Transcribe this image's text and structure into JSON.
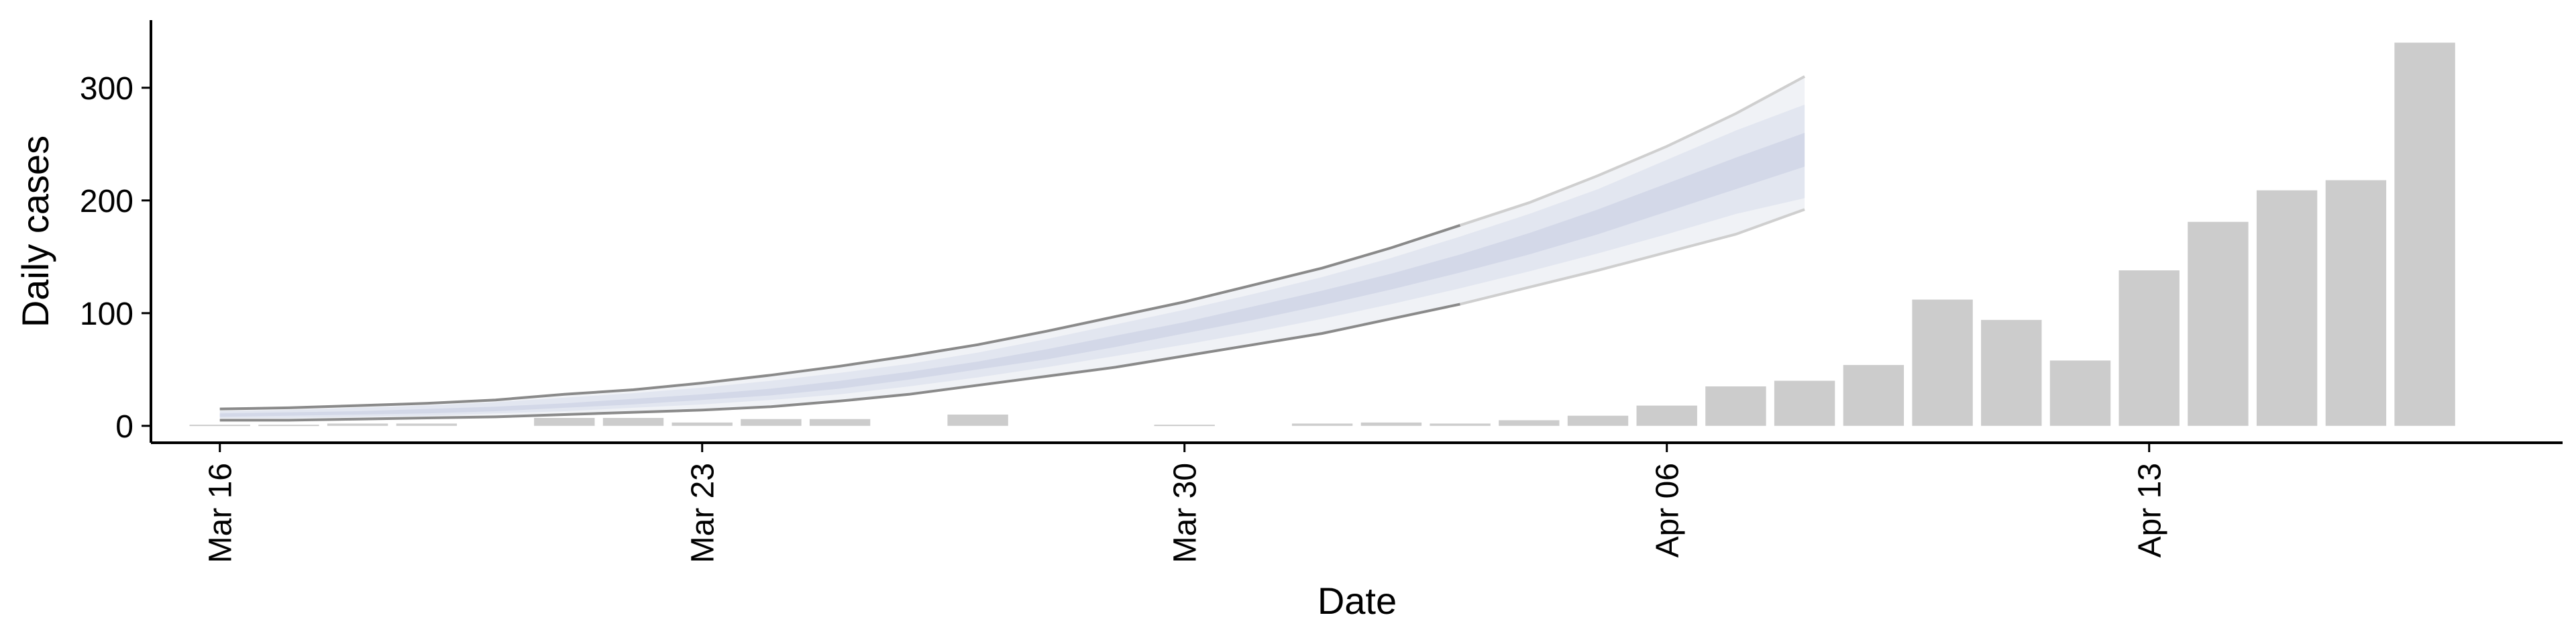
{
  "chart_data": {
    "type": "bar",
    "title": "",
    "xlabel": "Date",
    "ylabel": "Daily cases",
    "ylim": [
      -15,
      360
    ],
    "yticks": [
      0,
      100,
      200,
      300
    ],
    "xlim": [
      "2020-03-15",
      "2020-04-19"
    ],
    "xticks": [
      {
        "date": "2020-03-16",
        "label": "Mar 16"
      },
      {
        "date": "2020-03-23",
        "label": "Mar 23"
      },
      {
        "date": "2020-03-30",
        "label": "Mar 30"
      },
      {
        "date": "2020-04-06",
        "label": "Apr 06"
      },
      {
        "date": "2020-04-13",
        "label": "Apr 13"
      }
    ],
    "grid": false,
    "legend": "none",
    "colors": {
      "bars": "#cccccc",
      "band_outer": "#edf0f5",
      "band_mid": "#dde2ed",
      "band_inner": "#cdd3e6",
      "bound_dark": "#8a8a8a",
      "bound_light": "#cfcfcf"
    },
    "bars": {
      "dates": [
        "2020-03-16",
        "2020-03-17",
        "2020-03-18",
        "2020-03-19",
        "2020-03-20",
        "2020-03-21",
        "2020-03-22",
        "2020-03-23",
        "2020-03-24",
        "2020-03-25",
        "2020-03-26",
        "2020-03-27",
        "2020-03-28",
        "2020-03-29",
        "2020-03-30",
        "2020-03-31",
        "2020-04-01",
        "2020-04-02",
        "2020-04-03",
        "2020-04-04",
        "2020-04-05",
        "2020-04-06",
        "2020-04-07",
        "2020-04-08",
        "2020-04-09",
        "2020-04-10",
        "2020-04-11",
        "2020-04-12",
        "2020-04-13",
        "2020-04-14",
        "2020-04-15",
        "2020-04-16",
        "2020-04-17",
        "2020-04-18"
      ],
      "values": [
        1,
        1,
        2,
        2,
        0,
        7,
        7,
        3,
        6,
        6,
        0,
        10,
        0,
        0,
        1,
        0,
        2,
        3,
        2,
        5,
        9,
        18,
        35,
        40,
        54,
        112,
        94,
        58,
        138,
        181,
        209,
        218,
        340,
        0
      ]
    },
    "nowcast": {
      "dates": [
        "2020-03-16",
        "2020-03-17",
        "2020-03-18",
        "2020-03-19",
        "2020-03-20",
        "2020-03-21",
        "2020-03-22",
        "2020-03-23",
        "2020-03-24",
        "2020-03-25",
        "2020-03-26",
        "2020-03-27",
        "2020-03-28",
        "2020-03-29",
        "2020-03-30",
        "2020-03-31",
        "2020-04-01",
        "2020-04-02",
        "2020-04-03",
        "2020-04-04",
        "2020-04-05",
        "2020-04-06",
        "2020-04-07",
        "2020-04-08"
      ],
      "outer_lower": [
        5,
        5,
        6,
        7,
        8,
        10,
        12,
        14,
        17,
        22,
        28,
        36,
        44,
        52,
        62,
        72,
        82,
        95,
        108,
        123,
        138,
        154,
        170,
        192
      ],
      "mid_lower": [
        7,
        7,
        8,
        9,
        11,
        13,
        16,
        19,
        23,
        28,
        35,
        43,
        52,
        62,
        72,
        83,
        95,
        108,
        122,
        137,
        153,
        170,
        188,
        202
      ],
      "inner_lower": [
        8,
        9,
        10,
        11,
        13,
        16,
        19,
        23,
        27,
        33,
        41,
        50,
        59,
        70,
        82,
        94,
        107,
        121,
        136,
        152,
        170,
        190,
        210,
        230
      ],
      "inner_upper": [
        11,
        12,
        13,
        15,
        17,
        20,
        24,
        28,
        33,
        40,
        48,
        57,
        68,
        80,
        92,
        106,
        120,
        135,
        152,
        171,
        192,
        215,
        238,
        260
      ],
      "mid_upper": [
        13,
        14,
        16,
        18,
        21,
        25,
        29,
        34,
        40,
        47,
        55,
        65,
        77,
        90,
        103,
        117,
        132,
        149,
        168,
        188,
        210,
        236,
        262,
        285
      ],
      "outer_upper": [
        15,
        16,
        18,
        20,
        23,
        28,
        32,
        38,
        45,
        53,
        62,
        72,
        84,
        97,
        110,
        125,
        140,
        158,
        178,
        198,
        222,
        248,
        277,
        310
      ]
    }
  }
}
